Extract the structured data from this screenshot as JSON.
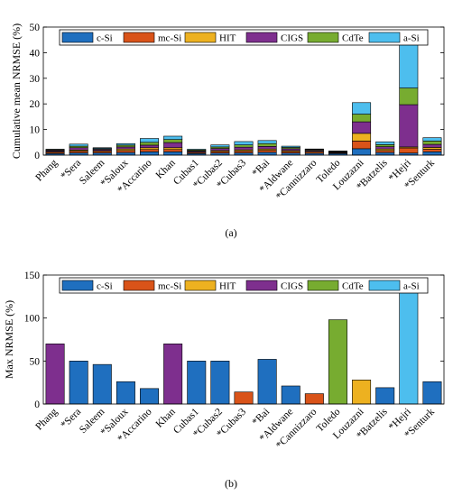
{
  "chart_data": [
    {
      "type": "bar",
      "stacked": true,
      "subtitle": "(a)",
      "ylabel": "Cumulative mean NRMSE (%)",
      "ylim": [
        0,
        50
      ],
      "yticks": [
        0,
        10,
        20,
        30,
        40,
        50
      ],
      "legend_placement": "top",
      "categories": [
        "Phang",
        "*Sera",
        "Saleem",
        "*Saloux",
        "*Accarino",
        "Khan",
        "Cubas1",
        "*Cubas2",
        "*Cubas3",
        "*Bai",
        "*Aldwane",
        "*Cannizzaro",
        "Toledo",
        "Louzazni",
        "*Batzelis",
        "*Hejri",
        "*Senturk"
      ],
      "series": [
        {
          "name": "c-Si",
          "color": "#1f6fbf",
          "values": [
            0.6,
            0.9,
            0.9,
            1.0,
            1.3,
            1.3,
            0.6,
            0.8,
            0.9,
            1.1,
            0.8,
            0.7,
            0.6,
            2.5,
            1.0,
            0.8,
            1.3
          ]
        },
        {
          "name": "mc-Si",
          "color": "#d95319",
          "values": [
            0.5,
            0.7,
            0.6,
            0.8,
            0.9,
            0.9,
            0.4,
            0.6,
            0.7,
            0.8,
            0.6,
            0.5,
            0.3,
            3.0,
            0.8,
            2.0,
            1.0
          ]
        },
        {
          "name": "HIT",
          "color": "#edb120",
          "values": [
            0.3,
            0.4,
            0.3,
            0.6,
            0.7,
            0.7,
            0.2,
            0.4,
            0.5,
            0.5,
            0.4,
            0.3,
            0.2,
            3.0,
            0.6,
            0.4,
            0.7
          ]
        },
        {
          "name": "CIGS",
          "color": "#7e2f8e",
          "values": [
            0.4,
            0.9,
            0.5,
            0.8,
            1.0,
            2.0,
            0.4,
            0.8,
            1.0,
            1.0,
            0.7,
            0.4,
            0.2,
            4.5,
            0.9,
            16.5,
            1.2
          ]
        },
        {
          "name": "CdTe",
          "color": "#77ac30",
          "values": [
            0.3,
            0.6,
            0.3,
            0.7,
            1.1,
            1.2,
            0.4,
            0.6,
            0.9,
            1.1,
            0.5,
            0.3,
            0.2,
            3.0,
            0.8,
            6.5,
            1.3
          ]
        },
        {
          "name": "a-Si",
          "color": "#4dbeee",
          "values": [
            0.2,
            0.8,
            0.3,
            0.6,
            1.5,
            1.3,
            0.3,
            0.8,
            1.3,
            1.2,
            0.5,
            0.2,
            0.1,
            4.5,
            1.1,
            17.0,
            1.3
          ]
        }
      ]
    },
    {
      "type": "bar",
      "subtitle": "(b)",
      "ylabel": "Max NRMSE (%)",
      "ylim": [
        0,
        150
      ],
      "yticks": [
        0,
        50,
        100,
        150
      ],
      "legend_placement": "top",
      "legend": [
        {
          "name": "c-Si",
          "color": "#1f6fbf"
        },
        {
          "name": "mc-Si",
          "color": "#d95319"
        },
        {
          "name": "HIT",
          "color": "#edb120"
        },
        {
          "name": "CIGS",
          "color": "#7e2f8e"
        },
        {
          "name": "CdTe",
          "color": "#77ac30"
        },
        {
          "name": "a-Si",
          "color": "#4dbeee"
        }
      ],
      "categories": [
        "Phang",
        "*Sera",
        "Saleem",
        "*Saloux",
        "*Accarino",
        "Khan",
        "Cubas1",
        "*Cubas2",
        "*Cubas3",
        "*Bai",
        "*Aldwane",
        "*Cannizzaro",
        "Toledo",
        "Louzazni",
        "*Batzelis",
        "*Hejri",
        "*Senturk"
      ],
      "values": [
        70,
        50,
        46,
        26,
        18,
        70,
        50,
        50,
        14,
        52,
        21,
        12,
        98,
        28,
        19,
        130,
        26
      ],
      "bar_series": [
        "CIGS",
        "c-Si",
        "c-Si",
        "c-Si",
        "c-Si",
        "CIGS",
        "c-Si",
        "c-Si",
        "mc-Si",
        "c-Si",
        "c-Si",
        "mc-Si",
        "CdTe",
        "HIT",
        "c-Si",
        "a-Si",
        "c-Si"
      ]
    }
  ]
}
